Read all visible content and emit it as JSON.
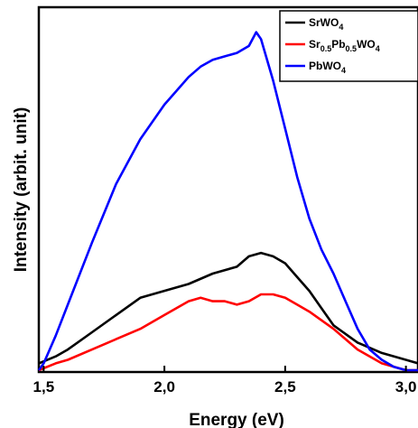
{
  "chart_data": {
    "type": "line",
    "xlabel": "Energy (eV)",
    "ylabel": "Intensity (arbit. unit)",
    "xlim": [
      1.48,
      3.05
    ],
    "ylim": [
      0,
      1.0
    ],
    "x_ticks": [
      1.5,
      2.0,
      2.5,
      3.0
    ],
    "x_tick_labels": [
      "1,5",
      "2,0",
      "2,5",
      "3,0"
    ],
    "grid": false,
    "legend_position": "top-right",
    "series": [
      {
        "name": "SrWO4",
        "color": "#000000",
        "x": [
          1.48,
          1.55,
          1.6,
          1.7,
          1.8,
          1.9,
          2.0,
          2.1,
          2.2,
          2.3,
          2.35,
          2.4,
          2.45,
          2.5,
          2.55,
          2.6,
          2.65,
          2.7,
          2.8,
          2.9,
          3.0,
          3.05
        ],
        "y": [
          0.02,
          0.04,
          0.06,
          0.11,
          0.16,
          0.21,
          0.23,
          0.25,
          0.28,
          0.3,
          0.33,
          0.34,
          0.33,
          0.31,
          0.27,
          0.23,
          0.18,
          0.13,
          0.08,
          0.05,
          0.03,
          0.02
        ]
      },
      {
        "name": "Sr0.5Pb0.5WO4",
        "color": "#ff0000",
        "x": [
          1.48,
          1.55,
          1.6,
          1.7,
          1.8,
          1.9,
          2.0,
          2.05,
          2.1,
          2.15,
          2.2,
          2.25,
          2.3,
          2.35,
          2.4,
          2.45,
          2.5,
          2.55,
          2.6,
          2.7,
          2.8,
          2.9,
          3.0,
          3.05
        ],
        "y": [
          0.0,
          0.02,
          0.03,
          0.06,
          0.09,
          0.12,
          0.16,
          0.18,
          0.2,
          0.21,
          0.2,
          0.2,
          0.19,
          0.2,
          0.22,
          0.22,
          0.21,
          0.19,
          0.17,
          0.12,
          0.06,
          0.02,
          0.0,
          0.0
        ]
      },
      {
        "name": "PbWO4",
        "color": "#0000ff",
        "x": [
          1.48,
          1.5,
          1.55,
          1.6,
          1.7,
          1.8,
          1.9,
          2.0,
          2.05,
          2.1,
          2.15,
          2.2,
          2.25,
          2.3,
          2.35,
          2.38,
          2.4,
          2.45,
          2.5,
          2.55,
          2.6,
          2.65,
          2.7,
          2.75,
          2.8,
          2.85,
          2.9,
          2.95,
          3.0,
          3.05
        ],
        "y": [
          0.0,
          0.02,
          0.1,
          0.19,
          0.37,
          0.54,
          0.67,
          0.77,
          0.81,
          0.85,
          0.88,
          0.9,
          0.91,
          0.92,
          0.94,
          0.98,
          0.96,
          0.84,
          0.7,
          0.56,
          0.44,
          0.35,
          0.28,
          0.2,
          0.12,
          0.06,
          0.03,
          0.01,
          0.0,
          0.0
        ]
      }
    ],
    "legend_entries": [
      {
        "base": "SrWO",
        "sub": "4",
        "rest": "",
        "sub2": ""
      },
      {
        "base": "Sr",
        "sub": "0.5",
        "rest": "Pb",
        "sub2": "0.5",
        "tail": "WO",
        "sub3": "4"
      },
      {
        "base": "PbWO",
        "sub": "4",
        "rest": "",
        "sub2": ""
      }
    ]
  }
}
